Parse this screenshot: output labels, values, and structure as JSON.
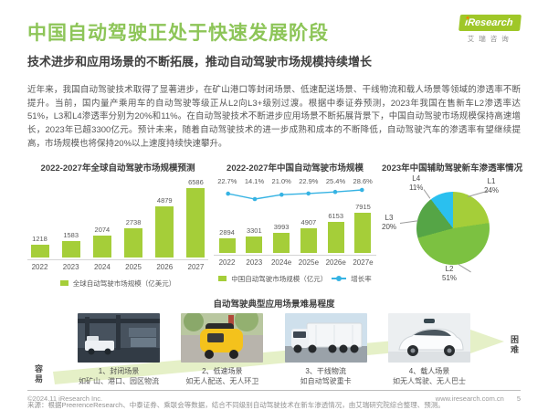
{
  "header": {
    "title": "中国自动驾驶正处于快速发展阶段",
    "subtitle": "技术进步和应用场景的不断拓展，推动自动驾驶市场规模持续增长",
    "logo": {
      "brand": "iResearch",
      "cn": "艾瑞咨询"
    }
  },
  "intro": "近年来，我国自动驾驶技术取得了显著进步，在矿山港口等封闭场景、低速配送场景、干线物流和载人场景等领域的渗透率不断提升。当前，国内量产乘用车的自动驾驶等级正从L2向L3+级别过渡。根据中泰证券预测，2023年我国在售新车L2渗透率达51%，L3和L4渗透率分别为20%和11%。在自动驾驶技术不断进步应用场景不断拓展背景下，中国自动驾驶市场规模保持高速增长，2023年已超3300亿元。预计未来，随着自动驾驶技术的进一步成熟和成本的不断降低，自动驾驶汽车的渗透率有望继续提高，市场规模也将保持20%以上速度持续快速攀升。",
  "theme": {
    "title_green": "#8dc558",
    "bar_green": "#a5ce39",
    "line_cyan": "#36b3e3"
  },
  "chart_data": [
    {
      "type": "bar",
      "title": "2022-2027年全球自动驾驶市场规模预测",
      "categories": [
        "2022",
        "2023",
        "2024",
        "2025",
        "2026",
        "2027"
      ],
      "values": [
        1218,
        1583,
        2074,
        2738,
        4879,
        6586
      ],
      "legend": "全球自动驾驶市场规模（亿美元）",
      "bar_color": "#a5ce39",
      "ylim": [
        0,
        6586
      ]
    },
    {
      "type": "bar+line",
      "title": "2022-2027年中国自动驾驶市场规模",
      "categories": [
        "2022",
        "2023",
        "2024e",
        "2025e",
        "2026e",
        "2027e"
      ],
      "series": [
        {
          "name": "中国自动驾驶市场规模（亿元）",
          "type": "bar",
          "values": [
            2894,
            3301,
            3993,
            4907,
            6153,
            7915
          ]
        },
        {
          "name": "增长率",
          "type": "line",
          "values": [
            22.7,
            14.1,
            21.0,
            22.9,
            25.4,
            28.6
          ],
          "labels": [
            "22.7%",
            "14.1%",
            "21.0%",
            "22.9%",
            "25.4%",
            "28.6%"
          ]
        }
      ],
      "bar_color": "#a5ce39",
      "line_color": "#36b3e3",
      "ylim": [
        0,
        7915
      ]
    },
    {
      "type": "pie",
      "title": "2023年中国辅助驾驶新车渗透率情况",
      "slices": [
        {
          "label": "L1",
          "value": 24,
          "pct": "24%",
          "color": "#a5ce39"
        },
        {
          "label": "L2",
          "value": 51,
          "pct": "51%",
          "color": "#7cc141"
        },
        {
          "label": "L3",
          "value": 20,
          "pct": "20%",
          "color": "#55a546"
        },
        {
          "label": "L4",
          "value": 11,
          "pct": "11%",
          "color": "#2ac0ef"
        }
      ]
    }
  ],
  "scenes": {
    "section_title": "自动驾驶典型应用场景难易程度",
    "easy_label": "容易",
    "hard_label": "困难",
    "items": [
      {
        "num_title": "1、封闭场景",
        "desc": "如矿山、港口、园区物流",
        "image": "port-agv-photo"
      },
      {
        "num_title": "2、低速场景",
        "desc": "如无人配送、无人环卫",
        "image": "yellow-delivery-robot-photo"
      },
      {
        "num_title": "3、干线物流",
        "desc": "如自动驾驶重卡",
        "image": "container-truck-photo"
      },
      {
        "num_title": "4、载人场景",
        "desc": "如无人驾驶、无人巴士",
        "image": "robotaxi-suv-photo"
      }
    ]
  },
  "source_note": "来源：根据PreerenceResearch、中泰证券、乘联会等数据，结合不同级别自动驾驶技术在新车渗透情况，由艾瑞研究院综合整理、预测。",
  "footer": {
    "copyright": "©2024.11 iResearch Inc.",
    "website": "www.iresearch.com.cn",
    "page_number": "5"
  }
}
